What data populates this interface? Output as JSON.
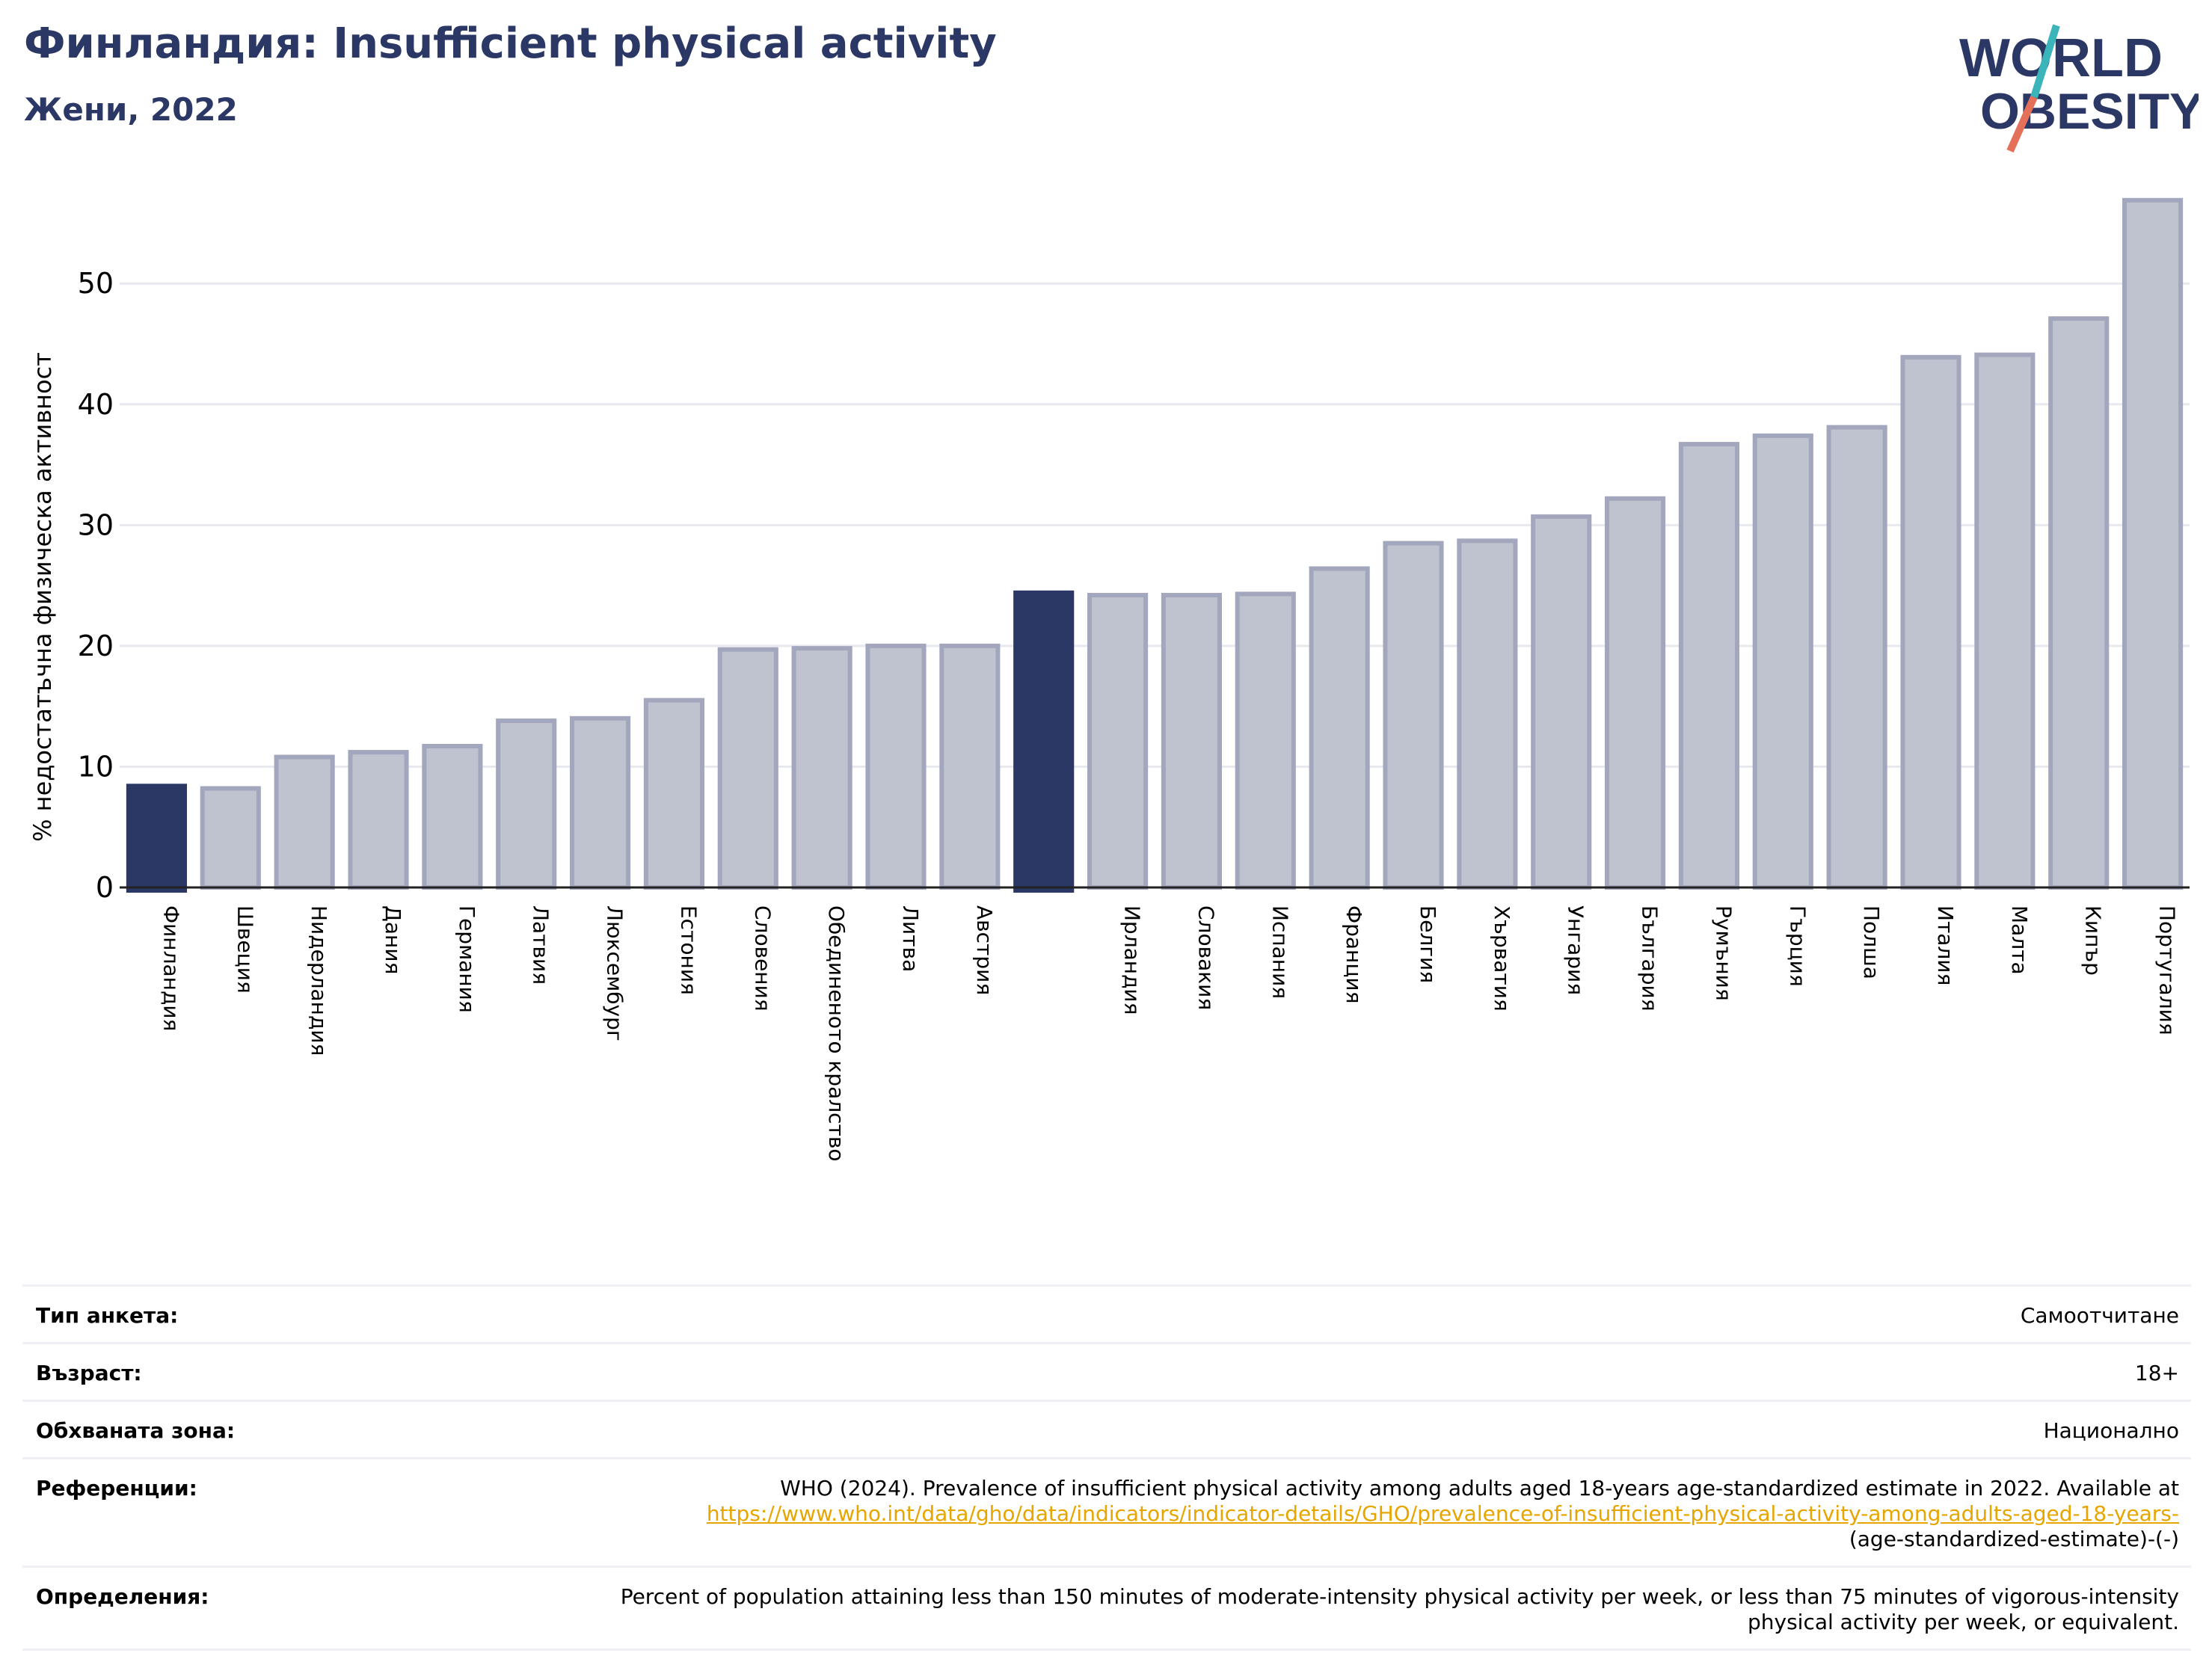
{
  "header": {
    "title": "Финландия: Insufficient physical activity",
    "subtitle": "Жени, 2022"
  },
  "logo": {
    "line1": "WORLD",
    "line2": "OBESITY"
  },
  "colors": {
    "highlight": "#2b3764",
    "bar": "#bfc2cf",
    "bar_edge": "#a3a7bd",
    "title": "#2b3764",
    "logo_teal": "#3bb5b9",
    "logo_red": "#e4705a",
    "link": "#e7a500"
  },
  "chart_data": {
    "type": "bar",
    "ylabel": "% недостатъчна физическа активност",
    "ylim": [
      0,
      58
    ],
    "yticks": [
      0,
      10,
      20,
      30,
      40,
      50
    ],
    "grid": true,
    "series": [
      {
        "categories": [
          "Финландия",
          "Швеция",
          "Нидерландия",
          "Дания",
          "Германия",
          "Латвия",
          "Люксембург",
          "Естония",
          "Словения",
          "Обединеното кралство",
          "Литва",
          "Австрия",
          "",
          "Ирландия",
          "Словакия",
          "Испания",
          "Франция",
          "Белгия",
          "Хърватия",
          "Унгария",
          "България",
          "Румъния",
          "Гърция",
          "Полша",
          "Италия",
          "Малта",
          "Кипър",
          "Португалия"
        ],
        "values": [
          8.4,
          8.2,
          10.8,
          11.2,
          11.7,
          13.8,
          14.0,
          15.5,
          19.7,
          19.8,
          20.0,
          20.0,
          24.4,
          24.2,
          24.2,
          24.3,
          26.4,
          28.5,
          28.7,
          30.7,
          32.2,
          36.7,
          37.4,
          38.1,
          43.9,
          44.1,
          47.1,
          56.9
        ],
        "highlighted": [
          0,
          12
        ]
      }
    ]
  },
  "meta": {
    "survey_type": {
      "label": "Тип анкета:",
      "value": "Самоотчитане"
    },
    "age": {
      "label": "Възраст:",
      "value": "18+"
    },
    "area": {
      "label": "Обхваната зона:",
      "value": "Национално"
    },
    "references": {
      "label": "Референции:",
      "text": "WHO (2024). Prevalence of insufficient physical activity among adults aged 18-years age-standardized estimate in 2022. Available at",
      "link": "https://www.who.int/data/gho/data/indicators/indicator-details/GHO/prevalence-of-insufficient-physical-activity-among-adults-aged-18-years-",
      "tail": "(age-standardized-estimate)-(-)"
    },
    "definitions": {
      "label": "Определения:",
      "text": "Percent of population attaining less than 150 minutes of moderate-intensity physical activity per week, or less than 75 minutes of vigorous-intensity physical activity per week, or equivalent."
    }
  }
}
